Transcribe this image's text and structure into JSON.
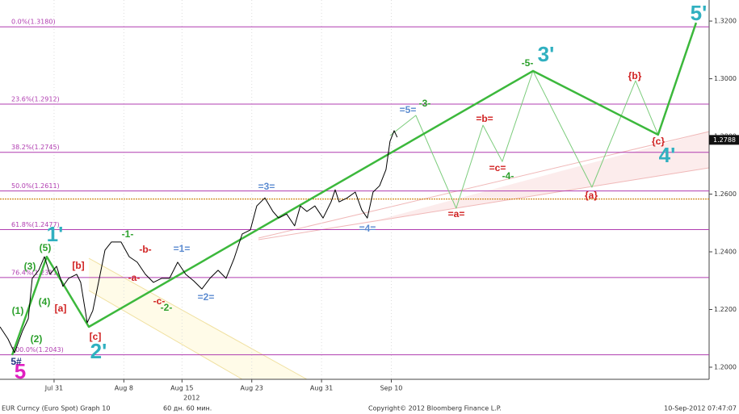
{
  "chart_data": {
    "type": "line",
    "xlim": [
      -4.65,
      56.33
    ],
    "ylim": [
      1.1958,
      1.3273
    ],
    "xticks": [
      {
        "value": 0,
        "label": "Jul 31"
      },
      {
        "value": 6,
        "label": "Aug 8"
      },
      {
        "value": 11,
        "label": "Aug 15"
      },
      {
        "value": 17,
        "label": "Aug 23"
      },
      {
        "value": 23,
        "label": "Aug 31"
      },
      {
        "value": 29,
        "label": "Sep 10"
      }
    ],
    "year_label": "2012",
    "yticks": [
      {
        "value": 1.2,
        "label": "1.2000"
      },
      {
        "value": 1.22,
        "label": "1.2200"
      },
      {
        "value": 1.24,
        "label": "1.2400"
      },
      {
        "value": 1.26,
        "label": "1.2600"
      },
      {
        "value": 1.28,
        "label": "1.2800"
      },
      {
        "value": 1.3,
        "label": "1.3000"
      },
      {
        "value": 1.32,
        "label": "1.3200"
      }
    ],
    "last_price": 1.2788,
    "fib_color": "#b03cb0",
    "fib_levels": [
      {
        "value": 1.318,
        "label": "0.0%(1.3180)"
      },
      {
        "value": 1.2912,
        "label": "23.6%(1.2912)"
      },
      {
        "value": 1.2745,
        "label": "38.2%(1.2745)"
      },
      {
        "value": 1.2611,
        "label": "50.0%(1.2611)"
      },
      {
        "value": 1.2477,
        "label": "61.8%(1.2477)"
      },
      {
        "value": 1.2311,
        "label": "76.4%(1.2311)"
      },
      {
        "value": 1.2043,
        "label": "100.0%(1.2043)"
      }
    ],
    "hline": {
      "value": 1.2583,
      "color": "#d08a20"
    },
    "price": {
      "color": "#000000",
      "x": [
        -4.65,
        -3.96,
        -3.4,
        -2.71,
        -2.22,
        -1.88,
        -1.32,
        -0.83,
        -0.35,
        0.21,
        0.76,
        1.25,
        1.94,
        2.29,
        2.85,
        3.33,
        3.82,
        4.38,
        4.93,
        5.76,
        6.46,
        7.15,
        7.85,
        8.54,
        9.24,
        9.93,
        10.63,
        11.32,
        12.01,
        12.71,
        13.4,
        14.1,
        14.79,
        15.49,
        16.18,
        16.88,
        17.43,
        18.13,
        18.82,
        19.31,
        20.0,
        20.69,
        21.18,
        21.74,
        22.43,
        23.13,
        23.82,
        24.17,
        24.51,
        25.21,
        25.9,
        26.46,
        26.94,
        27.43,
        27.99,
        28.54,
        28.89,
        29.24,
        29.51
      ],
      "values": [
        1.214,
        1.2098,
        1.205,
        1.2126,
        1.2168,
        1.2308,
        1.2336,
        1.2383,
        1.2322,
        1.235,
        1.228,
        1.2308,
        1.2322,
        1.2294,
        1.2154,
        1.2196,
        1.2294,
        1.2406,
        1.2434,
        1.2434,
        1.2383,
        1.2364,
        1.2322,
        1.2294,
        1.2308,
        1.2308,
        1.2364,
        1.2322,
        1.2299,
        1.2271,
        1.2308,
        1.2336,
        1.2308,
        1.2378,
        1.2462,
        1.2476,
        1.2559,
        1.2587,
        1.254,
        1.2517,
        1.2531,
        1.249,
        1.2559,
        1.254,
        1.2559,
        1.2517,
        1.2573,
        1.2615,
        1.2573,
        1.2587,
        1.2607,
        1.2545,
        1.2517,
        1.2607,
        1.2629,
        1.2685,
        1.2783,
        1.282,
        1.2797
      ]
    },
    "wave_line": {
      "color": "#3cb83c",
      "x": [
        -3.61,
        -0.63,
        2.99,
        41.18,
        51.94,
        55.21
      ],
      "values": [
        1.2042,
        1.2383,
        1.214,
        1.3027,
        1.2806,
        1.3194
      ]
    },
    "projection": {
      "color": "#7ccc7c",
      "x": [
        28.89,
        31.11,
        34.58,
        36.88,
        38.54,
        41.18,
        46.25,
        50.0,
        51.94
      ],
      "values": [
        1.2803,
        1.2873,
        1.2551,
        1.2839,
        1.2713,
        1.3027,
        1.2624,
        1.2993,
        1.2806
      ]
    },
    "annotations": [
      {
        "text": "5",
        "color": "#e020c0"
      },
      {
        "text": "5#",
        "color": "#203080"
      },
      {
        "text": "(1)",
        "color": "#2ca02c"
      },
      {
        "text": "(2)",
        "color": "#2ca02c"
      },
      {
        "text": "(3)",
        "color": "#2ca02c"
      },
      {
        "text": "(4)",
        "color": "#2ca02c"
      },
      {
        "text": "(5)",
        "color": "#2ca02c"
      },
      {
        "text": "1'",
        "color": "#30b0c0"
      },
      {
        "text": "[a]",
        "color": "#d02020"
      },
      {
        "text": "[b]",
        "color": "#d02020"
      },
      {
        "text": "[c]",
        "color": "#d02020"
      },
      {
        "text": "2'",
        "color": "#30b0c0"
      },
      {
        "text": "-1-",
        "color": "#2ca02c"
      },
      {
        "text": "-b-",
        "color": "#d02020"
      },
      {
        "text": "=1=",
        "color": "#5a8ad0"
      },
      {
        "text": "-a-",
        "color": "#d02020"
      },
      {
        "text": "-c-",
        "color": "#d02020"
      },
      {
        "text": "-2-",
        "color": "#2ca02c"
      },
      {
        "text": "=2=",
        "color": "#5a8ad0"
      },
      {
        "text": "=3=",
        "color": "#5a8ad0"
      },
      {
        "text": "=4=",
        "color": "#5a8ad0"
      },
      {
        "text": "=5=",
        "color": "#5a8ad0"
      },
      {
        "text": "-3-",
        "color": "#2ca02c"
      },
      {
        "text": "=a=",
        "color": "#d02020"
      },
      {
        "text": "=b=",
        "color": "#d02020"
      },
      {
        "text": "=c=",
        "color": "#d02020"
      },
      {
        "text": "-4-",
        "color": "#2ca02c"
      },
      {
        "text": "-5-",
        "color": "#2ca02c"
      },
      {
        "text": "3'",
        "color": "#30b0c0"
      },
      {
        "text": "{a}",
        "color": "#d02020"
      },
      {
        "text": "{b}",
        "color": "#d02020"
      },
      {
        "text": "{c}",
        "color": "#d02020"
      },
      {
        "text": "4'",
        "color": "#30b0c0"
      },
      {
        "text": "5'",
        "color": "#30b0c0"
      }
    ],
    "footer": {
      "left": "EUR Curncy (Euro Spot) Graph 10",
      "period": "60 дн. 60 мин.",
      "copyright": "Copyright© 2012 Bloomberg Finance L.P.",
      "timestamp": "10-Sep-2012 07:47:07"
    }
  }
}
